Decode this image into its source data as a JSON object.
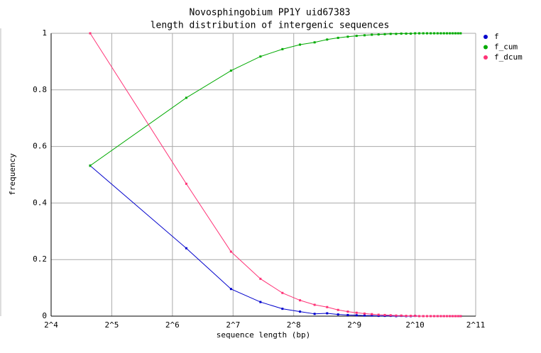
{
  "chart_data": {
    "type": "line",
    "title": "Novosphingobium PP1Y uid67383",
    "subtitle": "length distribution of intergenic sequences",
    "xlabel": "sequence length (bp)",
    "ylabel": "frequency",
    "xscale": "log2",
    "grid": true,
    "legend": "right",
    "x": [
      25,
      75,
      125,
      175,
      225,
      275,
      325,
      375,
      425,
      475,
      525,
      575,
      625,
      675,
      725,
      775,
      825,
      875,
      925,
      975,
      1025,
      1075,
      1125,
      1175,
      1225,
      1275,
      1325,
      1375,
      1425,
      1475,
      1525,
      1575,
      1625,
      1675,
      1725
    ],
    "series": [
      {
        "name": "f",
        "color": "#0000cc",
        "values": [
          0.532,
          0.24,
          0.096,
          0.05,
          0.026,
          0.016,
          0.008,
          0.01,
          0.006,
          0.004,
          0.003,
          0.002,
          0.002,
          0.001,
          0.001,
          0.001,
          0,
          0.001,
          0,
          0,
          0.001,
          0,
          0,
          0,
          0,
          0,
          0,
          0,
          0,
          0,
          0,
          0,
          0,
          0,
          0
        ]
      },
      {
        "name": "f_cum",
        "color": "#00aa00",
        "values": [
          0.532,
          0.772,
          0.868,
          0.918,
          0.944,
          0.96,
          0.968,
          0.978,
          0.984,
          0.988,
          0.991,
          0.993,
          0.995,
          0.996,
          0.997,
          0.998,
          0.998,
          0.999,
          0.999,
          0.999,
          1,
          1,
          1,
          1,
          1,
          1,
          1,
          1,
          1,
          1,
          1,
          1,
          1,
          1,
          1
        ]
      },
      {
        "name": "f_dcum",
        "color": "#ff3377",
        "values": [
          1,
          0.468,
          0.228,
          0.132,
          0.082,
          0.056,
          0.04,
          0.032,
          0.022,
          0.016,
          0.012,
          0.009,
          0.007,
          0.005,
          0.004,
          0.003,
          0.002,
          0.002,
          0.001,
          0.001,
          0.001,
          0,
          0,
          0,
          0,
          0,
          0,
          0,
          0,
          0,
          0,
          0,
          0,
          0,
          0
        ]
      }
    ],
    "xlim": [
      16,
      2048
    ],
    "xticks": [
      {
        "value": 16,
        "label": "2^4"
      },
      {
        "value": 32,
        "label": "2^5"
      },
      {
        "value": 64,
        "label": "2^6"
      },
      {
        "value": 128,
        "label": "2^7"
      },
      {
        "value": 256,
        "label": "2^8"
      },
      {
        "value": 512,
        "label": "2^9"
      },
      {
        "value": 1024,
        "label": "2^10"
      },
      {
        "value": 2048,
        "label": "2^11"
      }
    ],
    "ylim": [
      0,
      1
    ],
    "yticks": [
      0,
      0.2,
      0.4,
      0.6,
      0.8,
      1
    ]
  }
}
